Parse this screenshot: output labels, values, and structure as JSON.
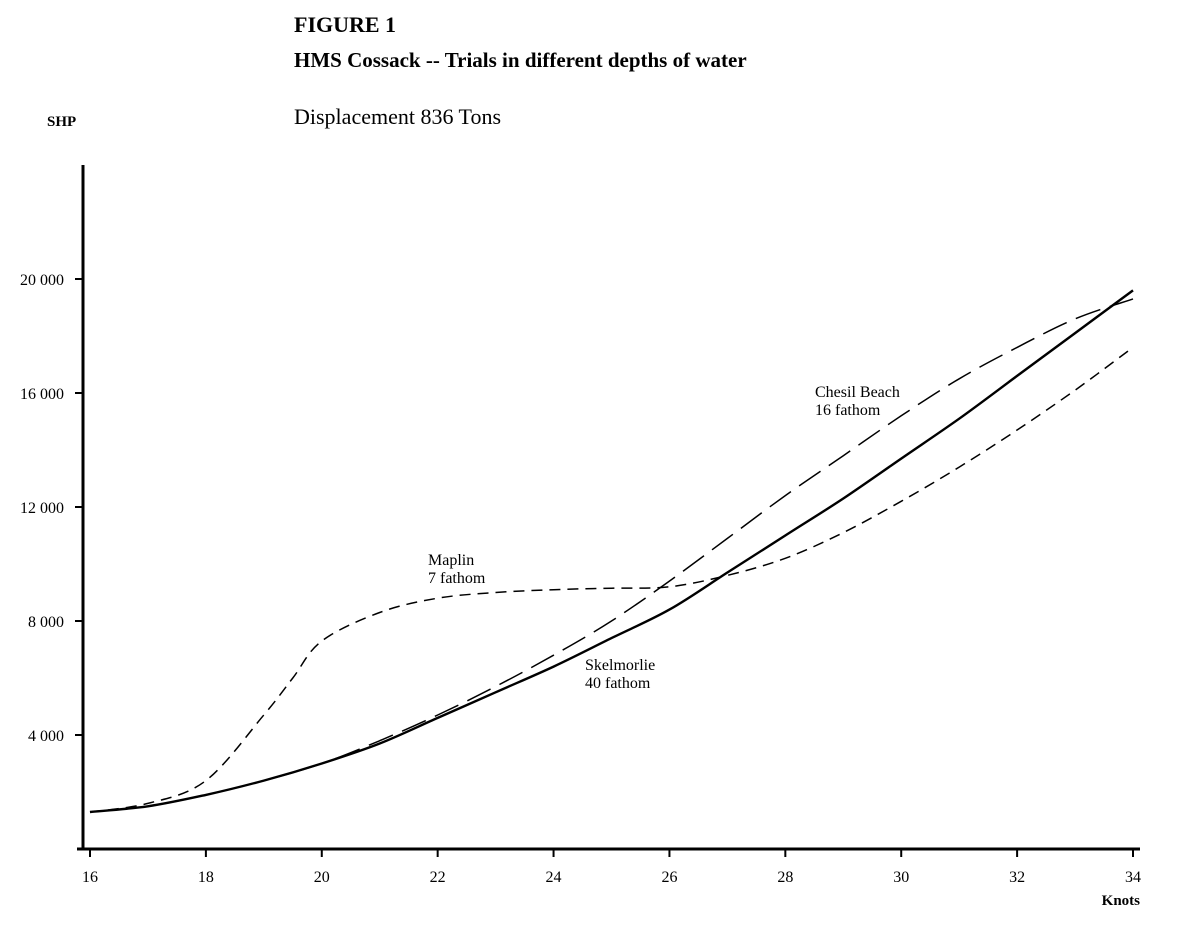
{
  "figure": {
    "title": "FIGURE 1",
    "subtitle": "HMS Cossack -- Trials in different depths of water",
    "note": "Displacement 836 Tons"
  },
  "chart_data": {
    "type": "line",
    "xlabel": "Knots",
    "ylabel": "SHP",
    "xlim": [
      16,
      34
    ],
    "ylim": [
      0,
      24000
    ],
    "x_ticks": [
      16,
      18,
      20,
      22,
      24,
      26,
      28,
      30,
      32,
      34
    ],
    "y_ticks": [
      4000,
      8000,
      12000,
      16000,
      20000
    ],
    "y_tick_labels": [
      "4 000",
      "8 000",
      "12 000",
      "16 000",
      "20 000"
    ],
    "grid": false,
    "series": [
      {
        "name": "Skelmorlie 40 fathom",
        "label_lines": [
          "Skelmorlie",
          "40 fathom"
        ],
        "style": "solid",
        "color": "#000000",
        "x": [
          16,
          17,
          18,
          19,
          20,
          21,
          22,
          23,
          24,
          25,
          26,
          27,
          28,
          29,
          30,
          31,
          32,
          33,
          34
        ],
        "y": [
          1300,
          1500,
          1900,
          2400,
          3000,
          3700,
          4600,
          5500,
          6400,
          7400,
          8400,
          9700,
          11000,
          12300,
          13700,
          15100,
          16600,
          18100,
          19600
        ]
      },
      {
        "name": "Maplin 7 fathom",
        "label_lines": [
          "Maplin",
          "7 fathom"
        ],
        "style": "dashed",
        "color": "#000000",
        "x": [
          16,
          17,
          18,
          19,
          19.5,
          20,
          21,
          22,
          23,
          24,
          25,
          26,
          27,
          28,
          29,
          30,
          31,
          32,
          33,
          34
        ],
        "y": [
          1300,
          1600,
          2400,
          4700,
          6000,
          7300,
          8300,
          8800,
          9000,
          9100,
          9150,
          9200,
          9600,
          10200,
          11100,
          12200,
          13400,
          14700,
          16100,
          17600
        ]
      },
      {
        "name": "Chesil Beach 16 fathom",
        "label_lines": [
          "Chesil Beach",
          "16 fathom"
        ],
        "style": "long-dashed",
        "color": "#000000",
        "x": [
          16,
          17,
          18,
          19,
          20,
          21,
          22,
          23,
          24,
          25,
          26,
          27,
          28,
          29,
          30,
          31,
          32,
          33,
          34
        ],
        "y": [
          1300,
          1500,
          1900,
          2400,
          3000,
          3800,
          4700,
          5700,
          6800,
          8000,
          9400,
          10900,
          12400,
          13800,
          15200,
          16500,
          17600,
          18600,
          19300
        ]
      }
    ]
  }
}
